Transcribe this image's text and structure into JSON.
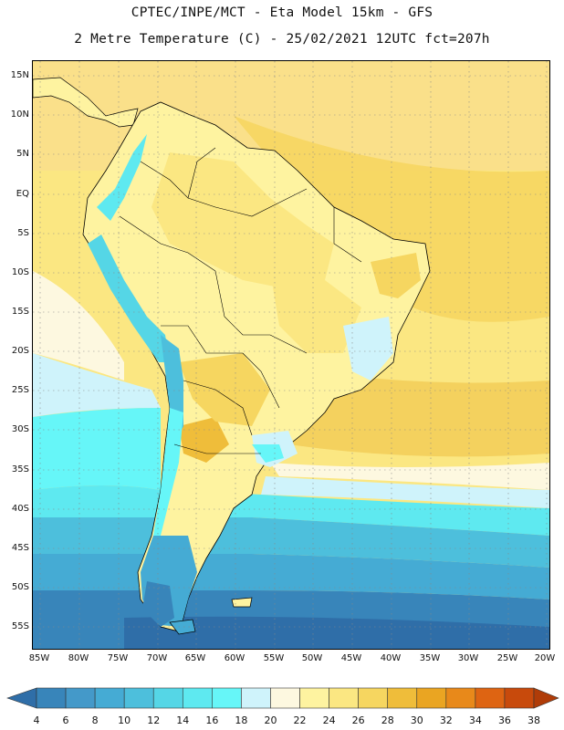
{
  "header": {
    "line1": "CPTEC/INPE/MCT -  Eta Model 15km - GFS",
    "line2": "2 Metre Temperature (C) - 25/02/2021 12UTC fct=207h"
  },
  "map": {
    "lat_labels": [
      "15N",
      "10N",
      "5N",
      "EQ",
      "5S",
      "10S",
      "15S",
      "20S",
      "25S",
      "30S",
      "35S",
      "40S",
      "45S",
      "50S",
      "55S"
    ],
    "lon_labels": [
      "85W",
      "80W",
      "75W",
      "70W",
      "65W",
      "60W",
      "55W",
      "50W",
      "45W",
      "40W",
      "35W",
      "30W",
      "25W",
      "20W"
    ],
    "extent": {
      "lon_min": -86,
      "lon_max": -19.5,
      "lat_min": -58,
      "lat_max": 17
    }
  },
  "legend": {
    "levels": [
      "4",
      "6",
      "8",
      "10",
      "12",
      "14",
      "16",
      "18",
      "20",
      "22",
      "24",
      "26",
      "28",
      "30",
      "32",
      "34",
      "36",
      "38"
    ],
    "colors": [
      "#2f6ea8",
      "#3885ba",
      "#4499c9",
      "#45abd4",
      "#4dbfdc",
      "#55d6e6",
      "#5ee9f0",
      "#66f6f8",
      "#cff3fb",
      "#fdf8e0",
      "#fef3a0",
      "#fbe782",
      "#f6d660",
      "#efbd3a",
      "#eaa522",
      "#e8891a",
      "#de6412",
      "#c84a0c",
      "#b03c08"
    ]
  }
}
